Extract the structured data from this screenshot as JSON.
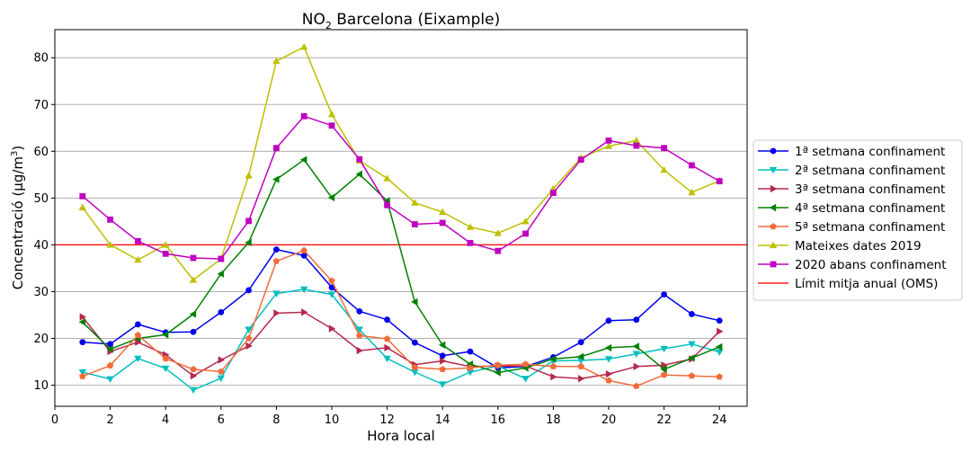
{
  "chart_data": {
    "type": "line",
    "title_main": "NO",
    "title_sub": "2",
    "title_rest": " Barcelona (Eixample)",
    "xlabel": "Hora local",
    "ylabel_main": "Concentració (µg/m",
    "ylabel_sup": "3",
    "ylabel_end": ")",
    "xlim": [
      0,
      25
    ],
    "ylim": [
      5.5,
      86
    ],
    "xticks": [
      0,
      2,
      4,
      6,
      8,
      10,
      12,
      14,
      16,
      18,
      20,
      22,
      24
    ],
    "yticks": [
      10,
      20,
      30,
      40,
      50,
      60,
      70,
      80
    ],
    "grid": "horizontal",
    "legend_position": "right",
    "x": [
      1,
      2,
      3,
      4,
      5,
      6,
      7,
      8,
      9,
      10,
      11,
      12,
      13,
      14,
      15,
      16,
      17,
      18,
      19,
      20,
      21,
      22,
      23,
      24
    ],
    "series": [
      {
        "name": "1ª setmana confinament",
        "color": "#0000ee",
        "marker": "circle",
        "values": [
          19.2,
          18.8,
          23.0,
          21.3,
          21.4,
          25.6,
          30.3,
          39.0,
          37.7,
          30.9,
          25.8,
          24.0,
          19.1,
          16.3,
          17.2,
          13.7,
          14.0,
          16.0,
          19.2,
          23.8,
          24.0,
          29.4,
          25.2,
          23.8
        ]
      },
      {
        "name": "2ª setmana confinament",
        "color": "#00bfbf",
        "marker": "triangle-down",
        "values": [
          12.8,
          11.3,
          15.7,
          13.6,
          9.0,
          11.5,
          21.9,
          29.6,
          30.5,
          29.4,
          21.9,
          15.7,
          12.8,
          10.2,
          12.8,
          14.1,
          11.4,
          15.2,
          15.3,
          15.6,
          16.7,
          17.8,
          18.8,
          17.1
        ]
      },
      {
        "name": "3ª setmana confinament",
        "color": "#b5294d",
        "marker": "triangle-right",
        "values": [
          24.6,
          17.2,
          19.2,
          16.5,
          12.0,
          15.4,
          18.4,
          25.4,
          25.6,
          22.1,
          17.4,
          18.0,
          14.4,
          15.2,
          14.0,
          14.1,
          14.1,
          11.8,
          11.4,
          12.4,
          14.0,
          14.3,
          15.6,
          21.5
        ]
      },
      {
        "name": "4ª setmana confinament",
        "color": "#008000",
        "marker": "triangle-left",
        "values": [
          23.5,
          17.7,
          20.0,
          20.8,
          25.2,
          33.8,
          40.5,
          54.0,
          58.2,
          50.1,
          55.1,
          49.4,
          27.8,
          18.6,
          14.5,
          12.7,
          13.7,
          15.6,
          16.1,
          18.0,
          18.3,
          13.4,
          15.8,
          18.2
        ]
      },
      {
        "name": "5ª setmana confinament",
        "color": "#f26b3a",
        "marker": "pentagon",
        "values": [
          11.9,
          14.2,
          20.7,
          15.7,
          13.4,
          12.9,
          20.0,
          36.5,
          38.8,
          32.3,
          20.6,
          19.9,
          13.8,
          13.4,
          13.7,
          14.3,
          14.5,
          14.0,
          14.0,
          11.0,
          9.8,
          12.2,
          12.0,
          11.8
        ]
      },
      {
        "name": "Mateixes dates 2019",
        "color": "#bfbf00",
        "marker": "triangle-up",
        "values": [
          48.0,
          40.0,
          36.8,
          40.0,
          32.5,
          37.0,
          54.8,
          79.3,
          82.3,
          67.9,
          58.0,
          54.2,
          49.0,
          47.0,
          43.8,
          42.5,
          45.0,
          52.0,
          58.6,
          61.1,
          62.3,
          56.0,
          51.2,
          53.7
        ]
      },
      {
        "name": "2020 abans confinament",
        "color": "#bf00bf",
        "marker": "square",
        "values": [
          50.4,
          45.4,
          40.8,
          38.1,
          37.2,
          37.0,
          45.1,
          60.7,
          67.5,
          65.5,
          58.3,
          48.5,
          44.4,
          44.7,
          40.4,
          38.7,
          42.4,
          51.1,
          58.2,
          62.3,
          61.2,
          60.7,
          57.0,
          53.6
        ]
      }
    ],
    "reference_line": {
      "name": "Límit mitja anual (OMS)",
      "color": "#ff2020",
      "value": 40
    }
  }
}
